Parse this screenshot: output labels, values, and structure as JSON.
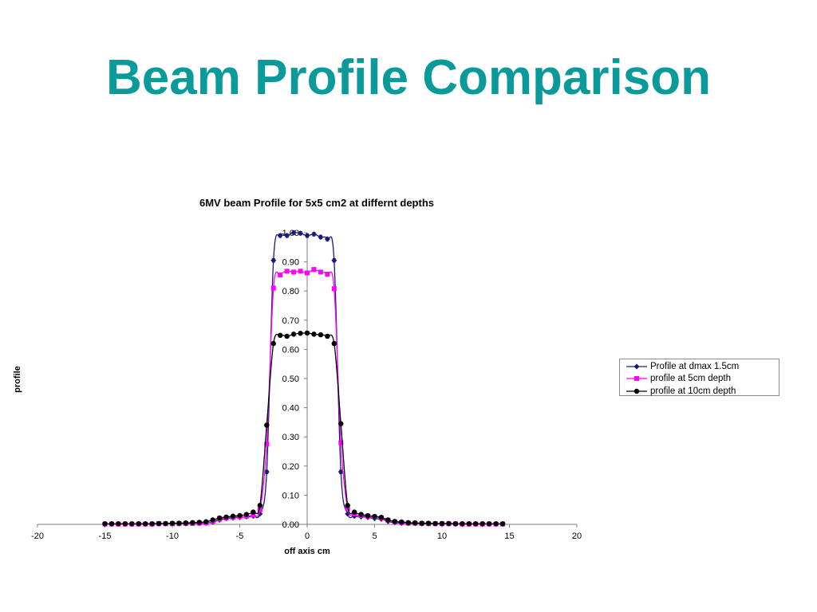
{
  "slide": {
    "title": "Beam Profile Comparison"
  },
  "colors": {
    "title": "#0b9a9a",
    "series": [
      "#1a1a7a",
      "#ff00ff",
      "#000000"
    ]
  },
  "chart_data": {
    "type": "scatter",
    "title": "6MV beam Profile for 5x5 cm2 at differnt depths",
    "xlabel": "off axis cm",
    "ylabel": "profile",
    "xlim": [
      -20,
      20
    ],
    "ylim": [
      0,
      1
    ],
    "x_ticks": [
      -20,
      -15,
      -10,
      -5,
      0,
      5,
      10,
      15,
      20
    ],
    "x_tick_labels": [
      "-20",
      "-15",
      "-10",
      "-5",
      "0",
      "5",
      "10",
      "15",
      "20"
    ],
    "y_ticks": [
      0,
      0.1,
      0.2,
      0.3,
      0.4,
      0.5,
      0.6,
      0.7,
      0.8,
      0.9,
      1.0
    ],
    "y_tick_labels": [
      "0.00",
      "0.10",
      "0.20",
      "0.30",
      "0.40",
      "0.50",
      "0.60",
      "0.70",
      "0.80",
      "0.90",
      "1.00"
    ],
    "grid": false,
    "legend_position": "right",
    "error_bars": true,
    "x": [
      -15,
      -14.5,
      -14,
      -13.5,
      -13,
      -12.5,
      -12,
      -11.5,
      -11,
      -10.5,
      -10,
      -9.5,
      -9,
      -8.5,
      -8,
      -7.5,
      -7,
      -6.5,
      -6,
      -5.5,
      -5,
      -4.5,
      -4,
      -3.5,
      -3,
      -2.5,
      -2,
      -1.5,
      -1,
      -0.5,
      0,
      0.5,
      1,
      1.5,
      2,
      2.5,
      3,
      3.5,
      4,
      4.5,
      5,
      5.5,
      6,
      6.5,
      7,
      7.5,
      8,
      8.5,
      9,
      9.5,
      10,
      10.5,
      11,
      11.5,
      12,
      12.5,
      13,
      13.5,
      14,
      14.5
    ],
    "series": [
      {
        "name": "Profile at dmax 1.5cm",
        "marker": "diamond",
        "values": [
          0.001,
          0.001,
          0.001,
          0.001,
          0.001,
          0.001,
          0.001,
          0.001,
          0.002,
          0.002,
          0.002,
          0.002,
          0.002,
          0.003,
          0.003,
          0.004,
          0.008,
          0.015,
          0.02,
          0.022,
          0.024,
          0.026,
          0.028,
          0.036,
          0.18,
          0.905,
          0.99,
          0.99,
          1.0,
          0.998,
          0.99,
          0.995,
          0.985,
          0.978,
          0.905,
          0.18,
          0.036,
          0.028,
          0.026,
          0.024,
          0.02,
          0.018,
          0.01,
          0.006,
          0.004,
          0.003,
          0.003,
          0.002,
          0.002,
          0.002,
          0.002,
          0.002,
          0.001,
          0.001,
          0.001,
          0.001,
          0.001,
          0.001,
          0.001,
          0.001
        ]
      },
      {
        "name": "profile at 5cm depth",
        "marker": "square",
        "values": [
          0.001,
          0.001,
          0.001,
          0.001,
          0.001,
          0.001,
          0.001,
          0.001,
          0.002,
          0.002,
          0.002,
          0.002,
          0.003,
          0.003,
          0.004,
          0.005,
          0.01,
          0.018,
          0.022,
          0.024,
          0.026,
          0.028,
          0.032,
          0.05,
          0.275,
          0.81,
          0.855,
          0.868,
          0.865,
          0.868,
          0.862,
          0.874,
          0.865,
          0.858,
          0.808,
          0.28,
          0.055,
          0.036,
          0.03,
          0.028,
          0.026,
          0.022,
          0.014,
          0.008,
          0.006,
          0.004,
          0.004,
          0.003,
          0.002,
          0.002,
          0.002,
          0.002,
          0.002,
          0.001,
          0.001,
          0.001,
          0.001,
          0.001,
          0.001,
          0.001
        ]
      },
      {
        "name": "profile at 10cm depth",
        "marker": "circle",
        "values": [
          0.002,
          0.002,
          0.002,
          0.002,
          0.002,
          0.002,
          0.002,
          0.002,
          0.003,
          0.003,
          0.004,
          0.004,
          0.005,
          0.006,
          0.007,
          0.009,
          0.015,
          0.022,
          0.025,
          0.028,
          0.03,
          0.034,
          0.042,
          0.065,
          0.34,
          0.62,
          0.648,
          0.645,
          0.652,
          0.655,
          0.656,
          0.652,
          0.65,
          0.645,
          0.62,
          0.345,
          0.065,
          0.042,
          0.034,
          0.03,
          0.027,
          0.024,
          0.015,
          0.01,
          0.008,
          0.006,
          0.005,
          0.004,
          0.004,
          0.003,
          0.003,
          0.003,
          0.002,
          0.002,
          0.002,
          0.002,
          0.002,
          0.002,
          0.002,
          0.002
        ]
      }
    ]
  }
}
